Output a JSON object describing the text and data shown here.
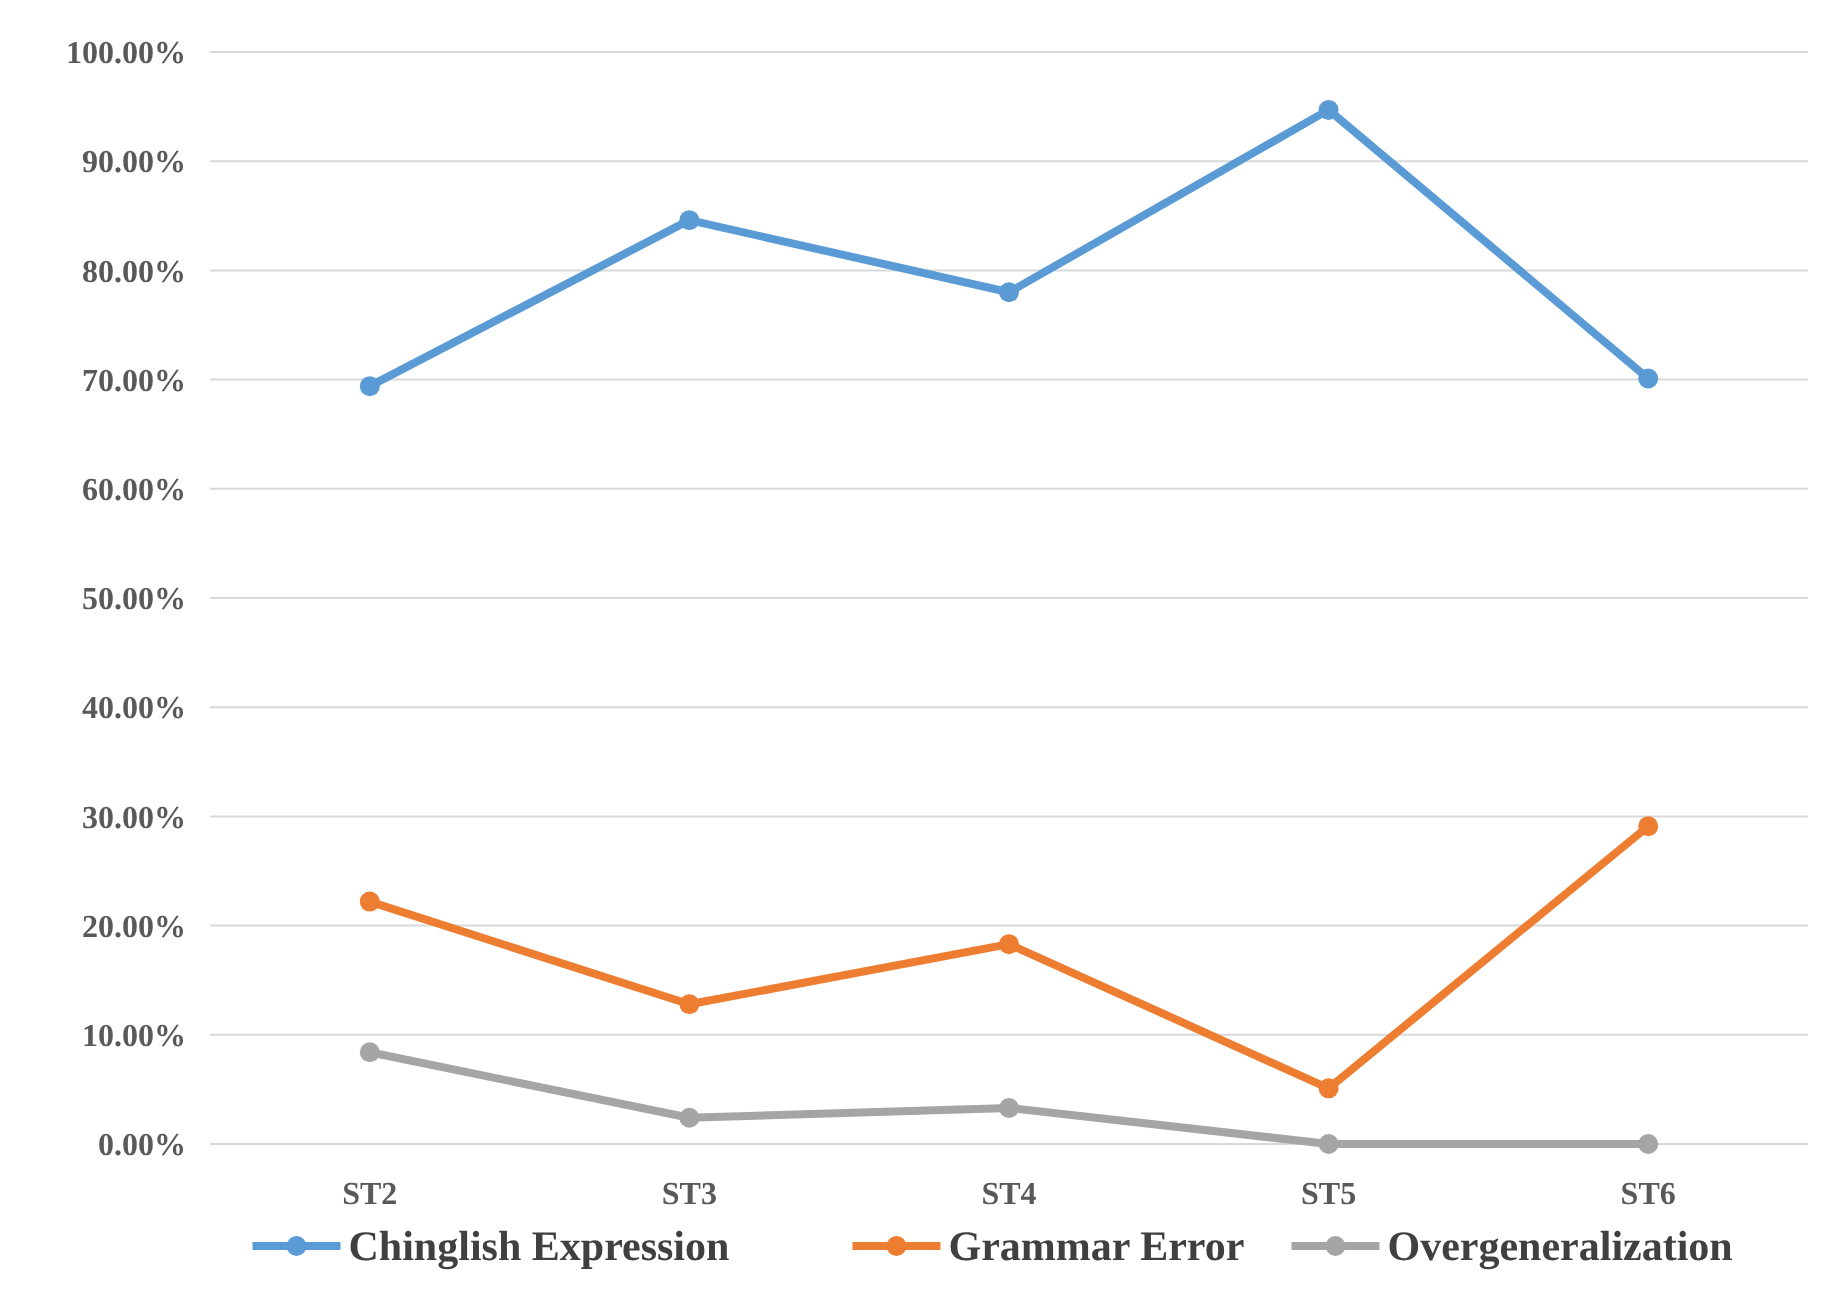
{
  "chart_data": {
    "type": "line",
    "categories": [
      "ST2",
      "ST3",
      "ST4",
      "ST5",
      "ST6"
    ],
    "series": [
      {
        "name": "Chinglish Expression",
        "color": "#5b9bd5",
        "values": [
          69.4,
          84.6,
          78.0,
          94.7,
          70.1
        ]
      },
      {
        "name": "Grammar Error",
        "color": "#ed7d31",
        "values": [
          22.2,
          12.8,
          18.3,
          5.1,
          29.1
        ]
      },
      {
        "name": "Overgeneralization",
        "color": "#a5a5a5",
        "values": [
          8.4,
          2.4,
          3.3,
          0,
          0
        ]
      }
    ],
    "ylim": [
      0,
      100
    ],
    "yticks": [
      {
        "value": 0,
        "label": "0.00%"
      },
      {
        "value": 10,
        "label": "10.00%"
      },
      {
        "value": 20,
        "label": "20.00%"
      },
      {
        "value": 30,
        "label": "30.00%"
      },
      {
        "value": 40,
        "label": "40.00%"
      },
      {
        "value": 50,
        "label": "50.00%"
      },
      {
        "value": 60,
        "label": "60.00%"
      },
      {
        "value": 70,
        "label": "70.00%"
      },
      {
        "value": 80,
        "label": "80.00%"
      },
      {
        "value": 90,
        "label": "90.00%"
      },
      {
        "value": 100,
        "label": "100.00%"
      }
    ],
    "grid": "y",
    "legend": "bottom",
    "marker": "circle",
    "line_style": "solid"
  }
}
